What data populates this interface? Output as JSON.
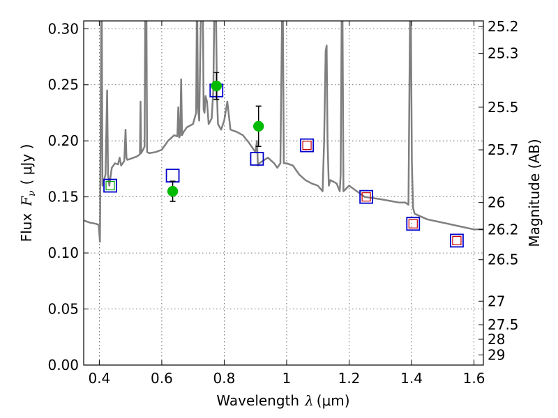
{
  "chart_data": {
    "type": "scatter",
    "title": "",
    "xlabel": "Wavelength",
    "xlabel_symbol": "λ",
    "xlabel_unit": "(μm)",
    "ylabel": "Flux",
    "ylabel_symbol": "F",
    "ylabel_subscript": "ν",
    "ylabel_unit": "( μJy )",
    "y2label": "Magnitude (AB)",
    "xlim": [
      0.35,
      1.63
    ],
    "ylim": [
      0.0,
      0.307
    ],
    "xticks": [
      0.4,
      0.6,
      0.8,
      1.0,
      1.2,
      1.4,
      1.6
    ],
    "xtick_labels": [
      "0.4",
      "0.6",
      "0.8",
      "1",
      "1.2",
      "1.4",
      "1.6"
    ],
    "yticks": [
      0.0,
      0.05,
      0.1,
      0.15,
      0.2,
      0.25,
      0.3
    ],
    "ytick_labels": [
      "0.00",
      "0.05",
      "0.10",
      "0.15",
      "0.20",
      "0.25",
      "0.30"
    ],
    "y2ticks": [
      {
        "label": "25.2",
        "flux": 0.302
      },
      {
        "label": "25.3",
        "flux": 0.278
      },
      {
        "label": "25.5",
        "flux": 0.23
      },
      {
        "label": "25.7",
        "flux": 0.192
      },
      {
        "label": "26",
        "flux": 0.145
      },
      {
        "label": "26.2",
        "flux": 0.121
      },
      {
        "label": "26.5",
        "flux": 0.094
      },
      {
        "label": "27",
        "flux": 0.057
      },
      {
        "label": "27.5",
        "flux": 0.036
      },
      {
        "label": "28",
        "flux": 0.023
      },
      {
        "label": "29",
        "flux": 0.009
      }
    ],
    "grid": true,
    "series": [
      {
        "kind": "line",
        "color": "#7f7f7f",
        "x": [
          0.35,
          0.37,
          0.39,
          0.398,
          0.402,
          0.404,
          0.406,
          0.408,
          0.41,
          0.42,
          0.425,
          0.428,
          0.432,
          0.44,
          0.45,
          0.46,
          0.465,
          0.47,
          0.48,
          0.484,
          0.487,
          0.49,
          0.5,
          0.52,
          0.53,
          0.532,
          0.534,
          0.536,
          0.54,
          0.545,
          0.547,
          0.549,
          0.551,
          0.553,
          0.56,
          0.58,
          0.6,
          0.62,
          0.64,
          0.65,
          0.653,
          0.656,
          0.659,
          0.662,
          0.665,
          0.67,
          0.68,
          0.7,
          0.71,
          0.712,
          0.714,
          0.716,
          0.72,
          0.725,
          0.728,
          0.73,
          0.732,
          0.734,
          0.737,
          0.74,
          0.745,
          0.75,
          0.76,
          0.765,
          0.768,
          0.771,
          0.774,
          0.777,
          0.78,
          0.79,
          0.8,
          0.81,
          0.82,
          0.84,
          0.86,
          0.88,
          0.9,
          0.905,
          0.908,
          0.912,
          0.94,
          0.96,
          0.97,
          0.98,
          0.985,
          0.988,
          0.991,
          0.994,
          1.0,
          1.02,
          1.04,
          1.06,
          1.08,
          1.1,
          1.115,
          1.12,
          1.125,
          1.128,
          1.131,
          1.135,
          1.14,
          1.16,
          1.17,
          1.173,
          1.176,
          1.179,
          1.182,
          1.2,
          1.25,
          1.3,
          1.34,
          1.36,
          1.38,
          1.39,
          1.395,
          1.398,
          1.401,
          1.405,
          1.41,
          1.45,
          1.5,
          1.55,
          1.6,
          1.63
        ],
        "y": [
          0.129,
          0.127,
          0.126,
          0.125,
          0.11,
          0.2,
          0.307,
          0.307,
          0.16,
          0.17,
          0.245,
          0.17,
          0.16,
          0.176,
          0.18,
          0.179,
          0.185,
          0.178,
          0.182,
          0.21,
          0.185,
          0.183,
          0.184,
          0.186,
          0.188,
          0.235,
          0.189,
          0.19,
          0.192,
          0.195,
          0.307,
          0.307,
          0.307,
          0.19,
          0.189,
          0.19,
          0.192,
          0.2,
          0.205,
          0.204,
          0.23,
          0.203,
          0.205,
          0.255,
          0.205,
          0.208,
          0.212,
          0.215,
          0.225,
          0.307,
          0.307,
          0.23,
          0.218,
          0.307,
          0.307,
          0.307,
          0.307,
          0.228,
          0.225,
          0.24,
          0.235,
          0.215,
          0.22,
          0.245,
          0.307,
          0.307,
          0.307,
          0.24,
          0.215,
          0.21,
          0.218,
          0.235,
          0.21,
          0.208,
          0.205,
          0.198,
          0.19,
          0.2,
          0.178,
          0.18,
          0.185,
          0.18,
          0.176,
          0.18,
          0.307,
          0.307,
          0.18,
          0.18,
          0.18,
          0.178,
          0.17,
          0.165,
          0.162,
          0.16,
          0.155,
          0.2,
          0.28,
          0.285,
          0.2,
          0.16,
          0.165,
          0.162,
          0.155,
          0.17,
          0.307,
          0.307,
          0.155,
          0.16,
          0.15,
          0.148,
          0.146,
          0.145,
          0.145,
          0.143,
          0.307,
          0.307,
          0.18,
          0.14,
          0.135,
          0.13,
          0.127,
          0.124,
          0.121,
          0.121
        ]
      },
      {
        "kind": "open-square",
        "color": "#0000cc",
        "x": [
          0.435,
          0.635,
          0.775,
          0.905,
          1.065,
          1.255,
          1.405,
          1.545
        ],
        "y": [
          0.16,
          0.169,
          0.245,
          0.184,
          0.196,
          0.15,
          0.126,
          0.111
        ]
      },
      {
        "kind": "open-square-small",
        "color": "#00aa00",
        "x": [
          0.435
        ],
        "y": [
          0.16
        ]
      },
      {
        "kind": "open-square-small",
        "color": "#cc0000",
        "x": [
          1.065,
          1.255,
          1.405,
          1.545
        ],
        "y": [
          0.196,
          0.15,
          0.126,
          0.111
        ]
      },
      {
        "kind": "filled-circle",
        "color": "#00bb00",
        "x": [
          0.635,
          0.775,
          0.91
        ],
        "y": [
          0.155,
          0.249,
          0.213
        ],
        "yerr": [
          0.009,
          0.012,
          0.018
        ]
      }
    ]
  }
}
